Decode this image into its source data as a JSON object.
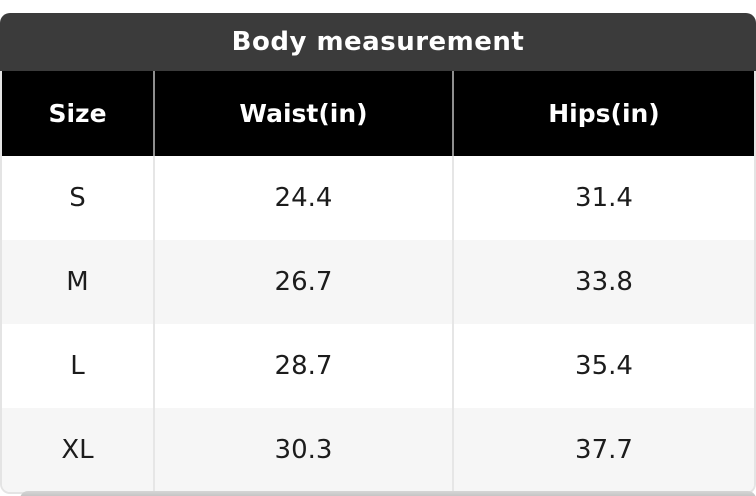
{
  "table": {
    "title": "Body measurement",
    "columns": [
      "Size",
      "Waist(in)",
      "Hips(in)"
    ],
    "rows": [
      {
        "size": "S",
        "waist": "24.4",
        "hips": "31.4"
      },
      {
        "size": "M",
        "waist": "26.7",
        "hips": "33.8"
      },
      {
        "size": "L",
        "waist": "28.7",
        "hips": "35.4"
      },
      {
        "size": "XL",
        "waist": "30.3",
        "hips": "37.7"
      }
    ],
    "colors": {
      "title_bar": "#3b3b3b",
      "header_row_bg": "#000000",
      "header_text": "#ffffff",
      "row_bg": "#ffffff",
      "row_alt_bg": "#f6f6f6",
      "body_text": "#1c1c1c",
      "grid_line": "#e6e6e6"
    }
  },
  "chart_data": {
    "type": "table",
    "title": "Body measurement",
    "columns": [
      "Size",
      "Waist(in)",
      "Hips(in)"
    ],
    "rows": [
      [
        "S",
        24.4,
        31.4
      ],
      [
        "M",
        26.7,
        33.8
      ],
      [
        "L",
        28.7,
        35.4
      ],
      [
        "XL",
        30.3,
        37.7
      ]
    ],
    "units": "inches",
    "layout_hints": {
      "header_style": "black background, white bold text",
      "zebra_striping": true,
      "title_bar": "dark gray rounded top bar, centered bold white title"
    }
  }
}
